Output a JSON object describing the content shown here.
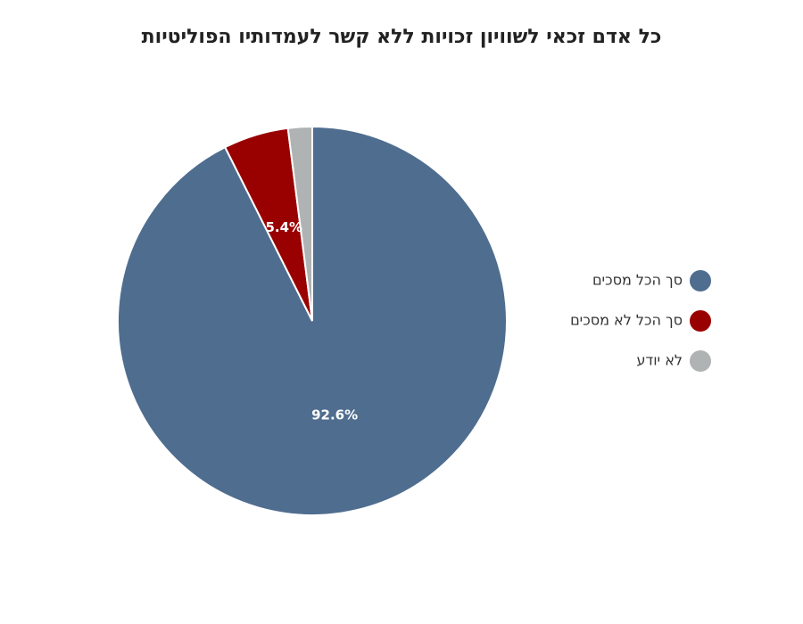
{
  "chart_data": {
    "type": "pie",
    "title": "כל אדם זכאי לשוויון זכויות ללא קשר לעמדותיו הפוליטיות",
    "categories": [
      "סך הכל מסכים",
      "סך הכל לא מסכים",
      "לא יודע"
    ],
    "values": [
      92.6,
      5.4,
      2.0
    ],
    "value_labels": [
      "92.6%",
      "5.4%",
      null
    ],
    "colors": [
      "#4f6d8f",
      "#990000",
      "#b0b3b3"
    ],
    "legend": "right"
  }
}
